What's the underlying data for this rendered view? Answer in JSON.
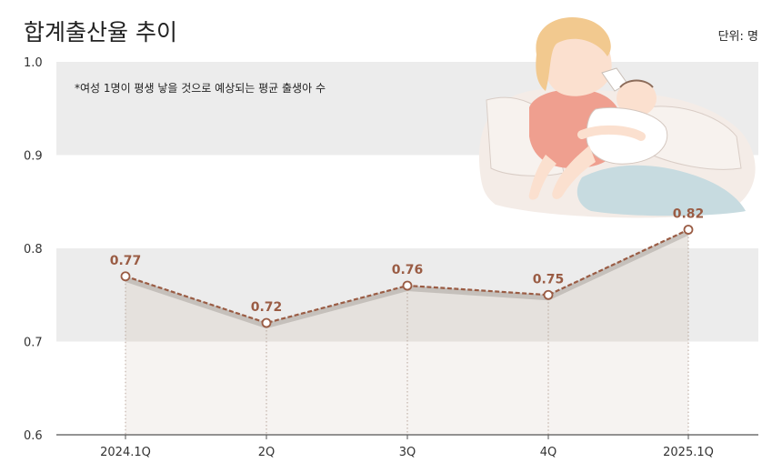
{
  "chart_data": {
    "type": "line",
    "title": "합계출산율 추이",
    "unit_label": "단위: 명",
    "note": "*여성 1명이 평생 낳을 것으로 예상되는 평균 출생아 수",
    "categories": [
      "2024.1Q",
      "2Q",
      "3Q",
      "4Q",
      "2025.1Q"
    ],
    "series": [
      {
        "values": [
          0.77,
          0.72,
          0.76,
          0.75,
          0.82
        ]
      }
    ],
    "data_labels": [
      "0.77",
      "0.72",
      "0.76",
      "0.75",
      "0.82"
    ],
    "ylim": [
      0.6,
      1.0
    ],
    "yticks": [
      "0.6",
      "0.7",
      "0.8",
      "0.9",
      "1.0"
    ],
    "xlabel": "",
    "ylabel": "",
    "grid": "alternating horizontal bands",
    "legend": "none",
    "illustration": "mother-feeding-baby-bottle",
    "colors": {
      "line": "#9a5c44",
      "marker_fill": "#ffffff",
      "label": "#9a5c44",
      "band": "#ececec",
      "area": "#e3ddd8",
      "axis": "#555555",
      "drop_line": "#b8a69c"
    }
  }
}
